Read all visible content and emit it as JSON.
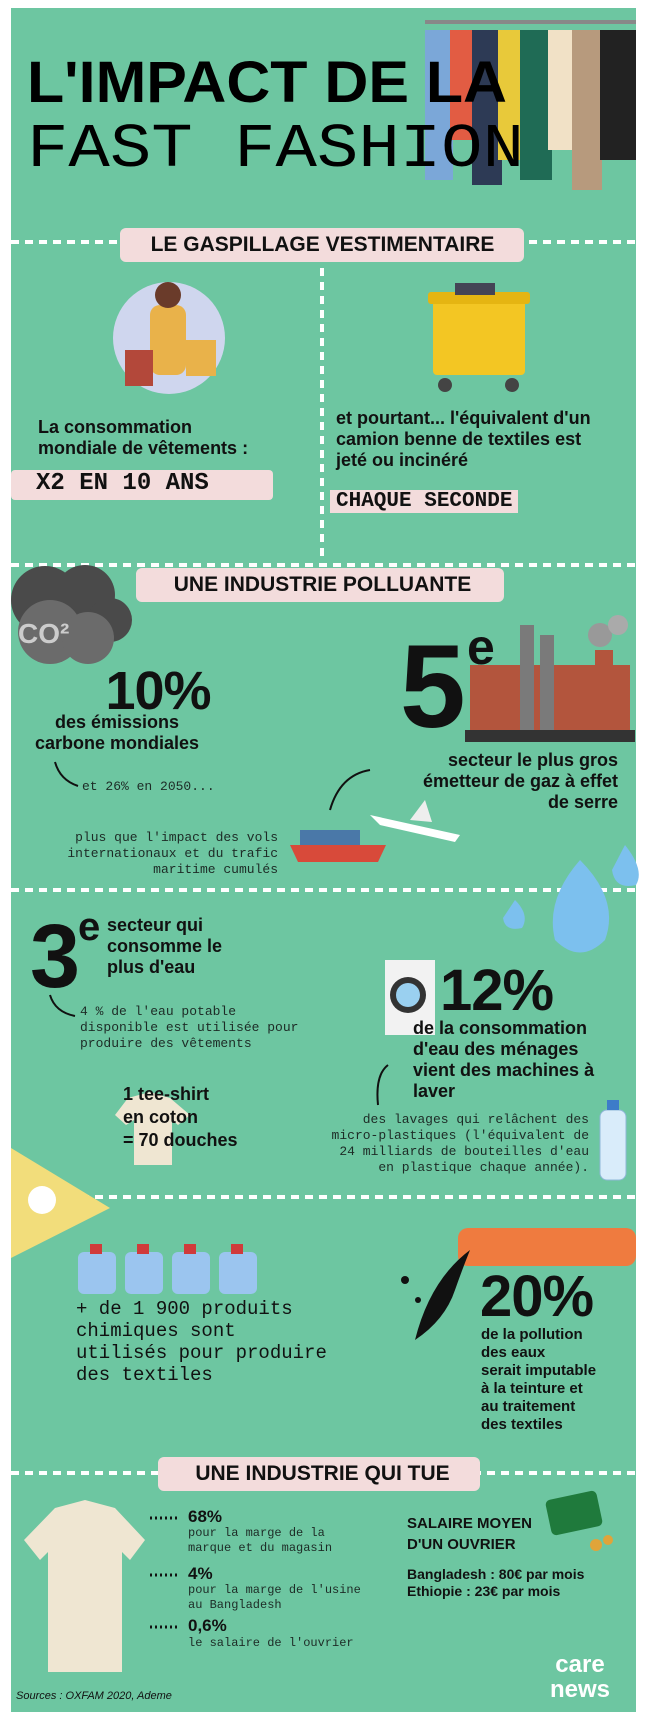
{
  "header": {
    "title_line1": "L'IMPACT DE LA",
    "title_line2": "FAST FASHION"
  },
  "waste": {
    "heading": "LE GASPILLAGE VESTIMENTAIRE",
    "left": {
      "text": [
        "La consommation",
        "mondiale de vêtements :"
      ],
      "highlight": "X2 EN 10 ANS"
    },
    "right": {
      "text": [
        "et pourtant... l'équivalent d'un",
        "camion benne de textiles est",
        "jeté ou incinéré"
      ],
      "highlight": "CHAQUE SECONDE"
    }
  },
  "pollution": {
    "heading": "UNE INDUSTRIE POLLUANTE",
    "co2": "CO²",
    "carbon": {
      "figure": "10%",
      "text": [
        "des émissions",
        "carbone mondiales"
      ],
      "projection": "et 26% en 2050...",
      "comparison": [
        "plus que l'impact des vols",
        "internationaux et du trafic",
        "maritime cumulés"
      ]
    },
    "emitter": {
      "rank": "5",
      "suffix": "e",
      "text": [
        "secteur le plus gros",
        "émetteur de gaz à effet",
        "de serre"
      ]
    },
    "water": {
      "rank": "3",
      "suffix": "e",
      "text": [
        "secteur qui",
        "consomme le",
        "plus d'eau"
      ],
      "detail": [
        "4 % de l'eau potable",
        "disponible est utilisée pour",
        "produire des vêtements"
      ],
      "tshirt": [
        "1 tee-shirt",
        "en coton",
        "= 70 douches"
      ]
    },
    "washing": {
      "figure": "12%",
      "text": [
        "de la consommation",
        "d'eau des ménages",
        "vient des machines à",
        "laver"
      ],
      "detail": [
        "des lavages qui relâchent des",
        "micro-plastiques (l'équivalent de",
        "24 milliards de bouteilles d'eau",
        "en plastique chaque année)."
      ]
    },
    "chemicals": {
      "text": [
        "+ de 1 900 produits",
        "chimiques sont",
        "utilisés pour produire",
        "des textiles"
      ]
    },
    "dyeing": {
      "figure": "20%",
      "text": [
        "de la pollution",
        "des eaux",
        "serait imputable",
        "à la teinture et",
        "au traitement",
        "des textiles"
      ]
    }
  },
  "deadly": {
    "heading": "UNE INDUSTRIE QUI TUE",
    "breakdown": [
      {
        "share": "68%",
        "label": [
          "pour la marge de la",
          "marque et du magasin"
        ]
      },
      {
        "share": "4%",
        "label": [
          "pour la marge de l'usine",
          "au Bangladesh"
        ]
      },
      {
        "share": "0,6%",
        "label": [
          "le salaire de l'ouvrier"
        ]
      }
    ],
    "salary": {
      "title": [
        "SALAIRE MOYEN",
        "D'UN OUVRIER"
      ],
      "rows": [
        "Bangladesh : 80€ par mois",
        "Ethiopie : 23€ par mois"
      ]
    }
  },
  "footer": {
    "sources": "Sources : OXFAM 2020, Ademe",
    "logo": [
      "care",
      "news"
    ]
  }
}
